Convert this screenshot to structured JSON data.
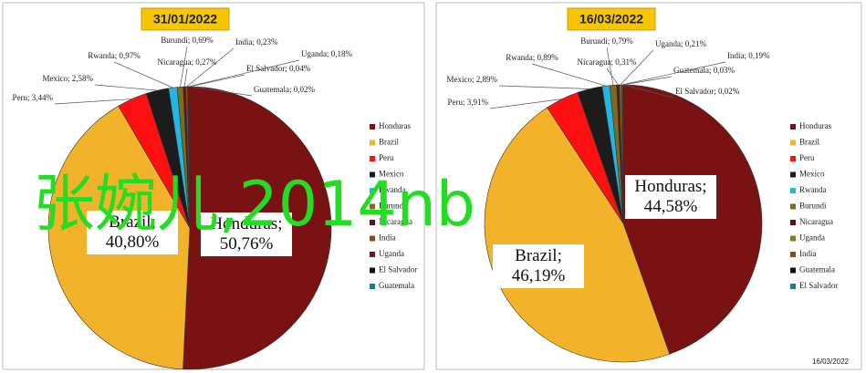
{
  "chart_data": [
    {
      "type": "pie",
      "title": "31/01/2022",
      "categories": [
        "Honduras",
        "Brazil",
        "Peru",
        "Mexico",
        "Rwanda",
        "Burundi",
        "Nicaragua",
        "India",
        "Uganda",
        "El Salvador",
        "Guatemala"
      ],
      "values": [
        50.76,
        40.8,
        3.44,
        2.58,
        0.97,
        0.69,
        0.27,
        0.23,
        0.18,
        0.04,
        0.02
      ],
      "value_labels": [
        "Honduras; 50,76%",
        "Brazil; 40,80%",
        "Peru; 3,44%",
        "Mexico; 2,58%",
        "Rwanda; 0,97%",
        "Burundi; 0,69%",
        "Nicaragua; 0,27%",
        "India; 0,23%",
        "Uganda; 0,18%",
        "El Salvador; 0,04%",
        "Guatemala; 0,02%"
      ],
      "colors": [
        "#7a1214",
        "#f2b32a",
        "#ff1010",
        "#1c1c1c",
        "#22b6e6",
        "#7d6c1e",
        "#5e1515",
        "#8a4a1a",
        "#6a1a10",
        "#111111",
        "#1b7f8f"
      ]
    },
    {
      "type": "pie",
      "title": "16/03/2022",
      "categories": [
        "Honduras",
        "Brazil",
        "Peru",
        "Mexico",
        "Rwanda",
        "Burundi",
        "Nicaragua",
        "Uganda",
        "India",
        "Guatemala",
        "El Salvador"
      ],
      "values": [
        44.58,
        46.19,
        3.91,
        2.89,
        0.89,
        0.79,
        0.31,
        0.21,
        0.19,
        0.03,
        0.02
      ],
      "value_labels": [
        "Honduras; 44,58%",
        "Brazil; 46,19%",
        "Peru; 3,91%",
        "Mexico; 2,89%",
        "Rwanda; 0,89%",
        "Burundi; 0,79%",
        "Nicaragua; 0,31%",
        "Uganda; 0,21%",
        "India; 0,19%",
        "Guatemala; 0,03%",
        "El Salvador; 0,02%"
      ],
      "colors": [
        "#7a1214",
        "#f2b32a",
        "#ff1010",
        "#1c1c1c",
        "#22b6e6",
        "#7d6c1e",
        "#5e1515",
        "#8a7a20",
        "#8a4a1a",
        "#111111",
        "#1b7f8f"
      ],
      "footer": "16/03/2022"
    }
  ],
  "watermark": "张婉儿,2014nb"
}
